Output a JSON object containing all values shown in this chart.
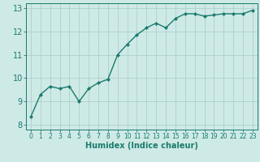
{
  "x": [
    0,
    1,
    2,
    3,
    4,
    5,
    6,
    7,
    8,
    9,
    10,
    11,
    12,
    13,
    14,
    15,
    16,
    17,
    18,
    19,
    20,
    21,
    22,
    23
  ],
  "y": [
    8.35,
    9.3,
    9.65,
    9.55,
    9.65,
    9.0,
    9.55,
    9.8,
    9.95,
    11.0,
    11.45,
    11.85,
    12.15,
    12.35,
    12.15,
    12.55,
    12.75,
    12.75,
    12.65,
    12.7,
    12.75,
    12.75,
    12.75,
    12.9
  ],
  "line_color": "#1a7a6e",
  "marker": "D",
  "marker_size": 2.2,
  "bg_color": "#ceeae6",
  "grid_color": "#aecfcc",
  "xlabel": "Humidex (Indice chaleur)",
  "xlabel_fontsize": 7,
  "tick_fontsize": 7,
  "ylim": [
    7.8,
    13.2
  ],
  "xlim": [
    -0.5,
    23.5
  ],
  "yticks": [
    8,
    9,
    10,
    11,
    12,
    13
  ],
  "xticks": [
    0,
    1,
    2,
    3,
    4,
    5,
    6,
    7,
    8,
    9,
    10,
    11,
    12,
    13,
    14,
    15,
    16,
    17,
    18,
    19,
    20,
    21,
    22,
    23
  ],
  "tick_color": "#1a7a6e",
  "axis_color": "#1a7a6e",
  "line_width": 1.0
}
